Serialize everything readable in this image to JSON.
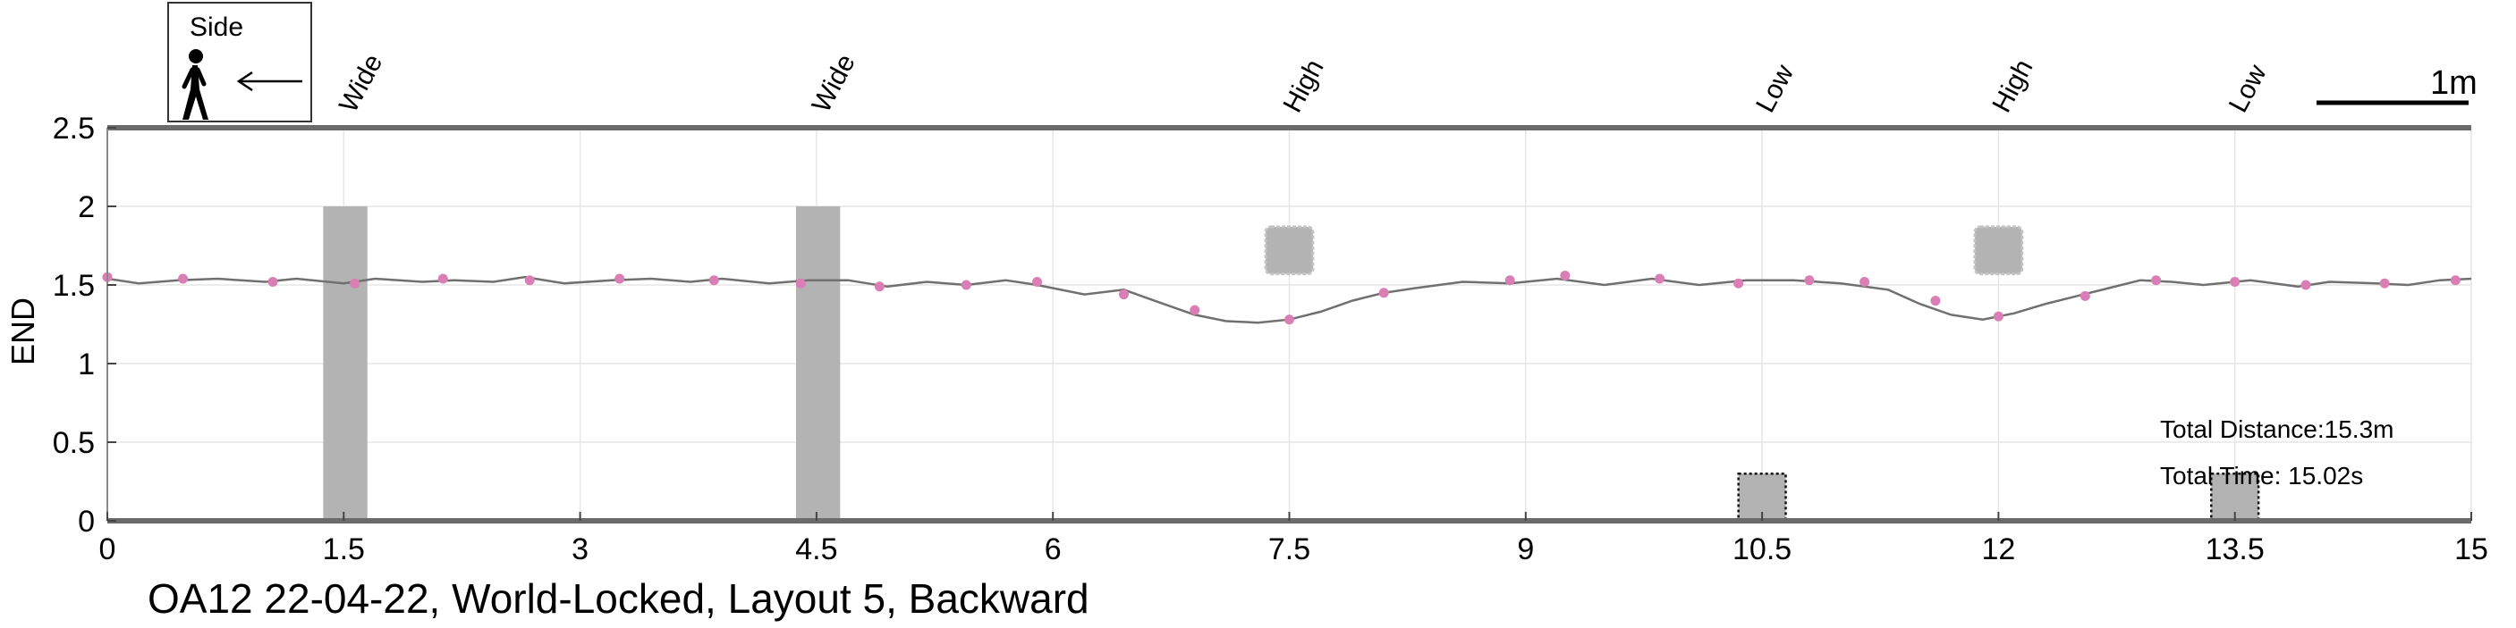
{
  "chart_data": {
    "type": "line",
    "title": "OA12 22-04-22, World-Locked, Layout 5, Backward",
    "xlabel": "",
    "ylabel": "END",
    "xlim": [
      0,
      15
    ],
    "ylim": [
      0,
      2.5
    ],
    "xticks": [
      0,
      1.5,
      3,
      4.5,
      6,
      7.5,
      9,
      10.5,
      12,
      13.5,
      15
    ],
    "xtick_labels": [
      "0",
      "1.5",
      "3",
      "4.5",
      "6",
      "7.5",
      "9",
      "10.5",
      "12",
      "13.5",
      "15"
    ],
    "yticks": [
      0,
      0.5,
      1,
      1.5,
      2,
      2.5
    ],
    "ytick_labels": [
      "0",
      "0.5",
      "1",
      "1.5",
      "2",
      "2.5"
    ],
    "grid": true,
    "legend": {
      "label": "Side",
      "placement": "top-left",
      "icon": "walking-person-icon",
      "arrow": "left-arrow-icon"
    },
    "scale_bar": {
      "label": "1m",
      "length": 1
    },
    "obstacles": [
      {
        "label": "Wide",
        "x_start": 1.37,
        "x_end": 1.65,
        "y_start": 0,
        "y_end": 2,
        "style": "solid"
      },
      {
        "label": "Wide",
        "x_start": 4.37,
        "x_end": 4.65,
        "y_start": 0,
        "y_end": 2,
        "style": "solid"
      },
      {
        "label": "High",
        "x_start": 7.35,
        "x_end": 7.65,
        "y_start": 1.57,
        "y_end": 1.87,
        "style": "rounded"
      },
      {
        "label": "Low",
        "x_start": 10.35,
        "x_end": 10.65,
        "y_start": 0,
        "y_end": 0.3,
        "style": "dotted"
      },
      {
        "label": "High",
        "x_start": 11.85,
        "x_end": 12.15,
        "y_start": 1.57,
        "y_end": 1.87,
        "style": "rounded"
      },
      {
        "label": "Low",
        "x_start": 13.35,
        "x_end": 13.65,
        "y_start": 0,
        "y_end": 0.3,
        "style": "dotted"
      }
    ],
    "series": [
      {
        "line_color": "#707070",
        "marker_color": "#d97fb5",
        "path": {
          "x": [
            0,
            0.2,
            0.45,
            0.7,
            1.0,
            1.2,
            1.5,
            1.7,
            2.0,
            2.2,
            2.45,
            2.65,
            2.9,
            3.2,
            3.45,
            3.7,
            3.9,
            4.2,
            4.45,
            4.7,
            4.95,
            5.2,
            5.45,
            5.7,
            5.9,
            6.2,
            6.45,
            6.7,
            6.9,
            7.1,
            7.3,
            7.5,
            7.7,
            7.9,
            8.1,
            8.3,
            8.6,
            8.9,
            9.2,
            9.5,
            9.8,
            10.1,
            10.4,
            10.7,
            11.0,
            11.3,
            11.5,
            11.7,
            11.9,
            12.1,
            12.3,
            12.5,
            12.7,
            12.9,
            13.1,
            13.3,
            13.6,
            13.9,
            14.1,
            14.4,
            14.6,
            14.8,
            15.0
          ],
          "y": [
            1.54,
            1.51,
            1.53,
            1.54,
            1.52,
            1.54,
            1.51,
            1.54,
            1.52,
            1.53,
            1.52,
            1.55,
            1.51,
            1.53,
            1.54,
            1.52,
            1.54,
            1.51,
            1.53,
            1.53,
            1.49,
            1.52,
            1.5,
            1.53,
            1.5,
            1.44,
            1.47,
            1.38,
            1.31,
            1.27,
            1.26,
            1.28,
            1.33,
            1.4,
            1.45,
            1.48,
            1.52,
            1.51,
            1.54,
            1.5,
            1.54,
            1.5,
            1.53,
            1.53,
            1.51,
            1.47,
            1.38,
            1.31,
            1.28,
            1.32,
            1.38,
            1.43,
            1.48,
            1.53,
            1.52,
            1.5,
            1.53,
            1.49,
            1.52,
            1.51,
            1.5,
            1.53,
            1.54
          ]
        },
        "markers": {
          "x": [
            0,
            0.48,
            1.05,
            1.57,
            2.13,
            2.68,
            3.25,
            3.85,
            4.4,
            4.9,
            5.45,
            5.9,
            6.45,
            6.9,
            7.5,
            8.1,
            8.9,
            9.25,
            9.85,
            10.35,
            10.8,
            11.15,
            11.6,
            12.0,
            12.55,
            13.0,
            13.5,
            13.95,
            14.45,
            14.9
          ],
          "y": [
            1.55,
            1.54,
            1.52,
            1.51,
            1.54,
            1.53,
            1.54,
            1.53,
            1.51,
            1.49,
            1.5,
            1.52,
            1.44,
            1.34,
            1.28,
            1.45,
            1.53,
            1.56,
            1.54,
            1.51,
            1.53,
            1.52,
            1.4,
            1.3,
            1.43,
            1.53,
            1.52,
            1.5,
            1.51,
            1.53
          ]
        }
      }
    ],
    "annotations": {
      "total_distance": "Total Distance:15.3m",
      "total_time": "Total Time: 15.02s"
    }
  }
}
